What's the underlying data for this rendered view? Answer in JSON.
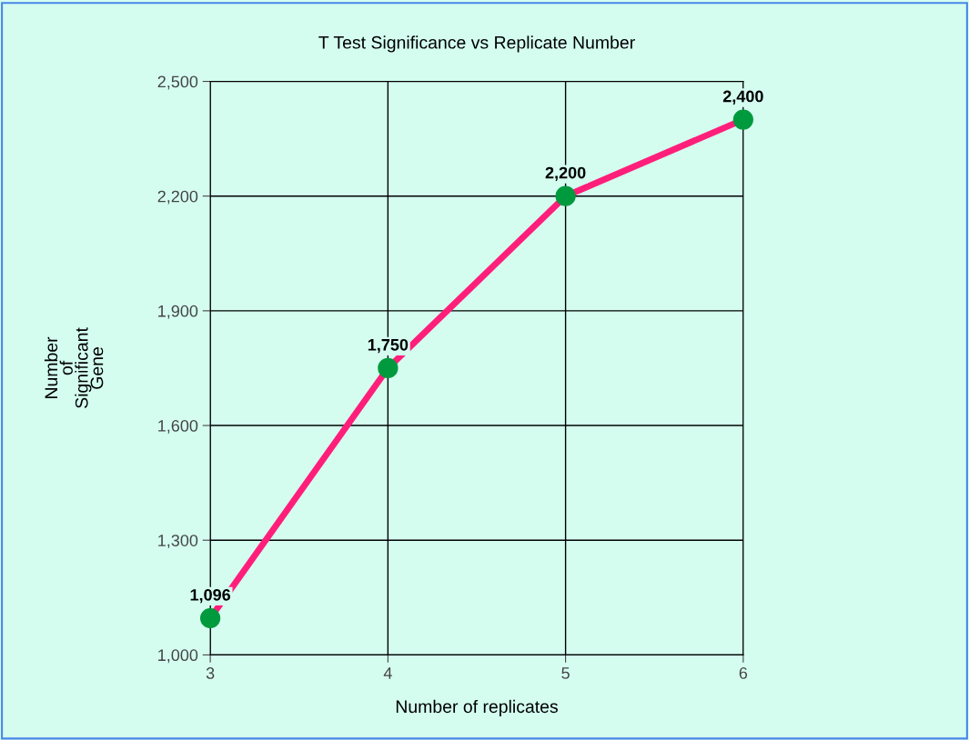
{
  "chart_data": {
    "type": "line",
    "title": "T Test Significance vs Replicate Number",
    "xlabel": "Number of replicates",
    "ylabel": "Number\nof\nSignificant\nGene",
    "x": [
      3,
      4,
      5,
      6
    ],
    "series": [
      {
        "color": "#ff1f7a",
        "values": [
          1096,
          1750,
          2200,
          2400
        ],
        "value_labels": [
          "1,096",
          "1,750",
          "2,200",
          "2,400"
        ]
      }
    ],
    "marker": "circle",
    "line_style": "solid",
    "xlim": [
      3,
      6
    ],
    "xticks": [
      3,
      4,
      5,
      6
    ],
    "ylim": [
      1000,
      2500
    ],
    "yticks": [
      {
        "value": 1000,
        "label": "1,000"
      },
      {
        "value": 1300,
        "label": "1,300"
      },
      {
        "value": 1600,
        "label": "1,600"
      },
      {
        "value": 1900,
        "label": "1,900"
      },
      {
        "value": 2200,
        "label": "2,200"
      },
      {
        "value": 2500,
        "label": "2,500"
      }
    ],
    "grid": true
  }
}
